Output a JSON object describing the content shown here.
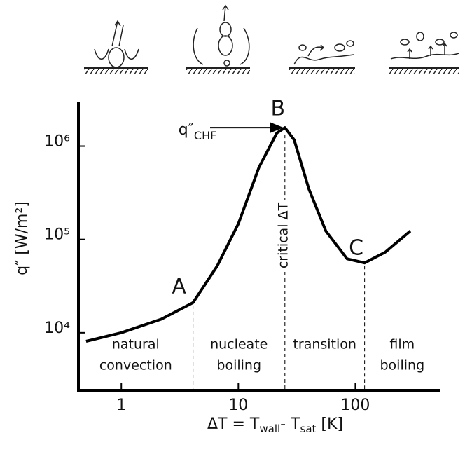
{
  "chart_data": {
    "type": "line",
    "x_label": [
      "ΔT = T",
      "wall",
      "- T",
      "sat",
      "  [K]"
    ],
    "y_label": "q″ [W/m²]",
    "xscale": "log",
    "yscale": "log",
    "xlim": [
      0.43,
      527
    ],
    "ylim": [
      2415,
      3000000
    ],
    "xticks": [
      1,
      10,
      100
    ],
    "yticks": [
      {
        "value": 10000,
        "label": "10⁴"
      },
      {
        "value": 100000,
        "label": "10⁵"
      },
      {
        "value": 1000000,
        "label": "10⁶"
      }
    ],
    "series": [
      {
        "color": "#000000",
        "x": [
          0.5,
          1.0,
          2.2,
          4.1,
          6.6,
          10,
          15,
          21.3,
          25,
          30,
          40,
          56,
          85,
          120,
          180,
          295
        ],
        "values": [
          8100,
          10000,
          14000,
          21000,
          52000,
          147000,
          590000,
          1380000,
          1580000,
          1170000,
          350000,
          123000,
          62000,
          56000,
          73000,
          123000
        ]
      }
    ],
    "points": [
      {
        "label": "A",
        "x": 4.1,
        "y": 21000
      },
      {
        "label": "B",
        "x": 25,
        "y": 1580000
      },
      {
        "label": "C",
        "x": 120,
        "y": 56000
      }
    ],
    "chf_label": [
      "q″",
      "CHF"
    ],
    "critical_label": "critical ΔT",
    "regions": [
      [
        "natural",
        "convection"
      ],
      [
        "nucleate",
        "boiling"
      ],
      [
        "transition"
      ],
      [
        "film",
        "boiling"
      ]
    ]
  }
}
